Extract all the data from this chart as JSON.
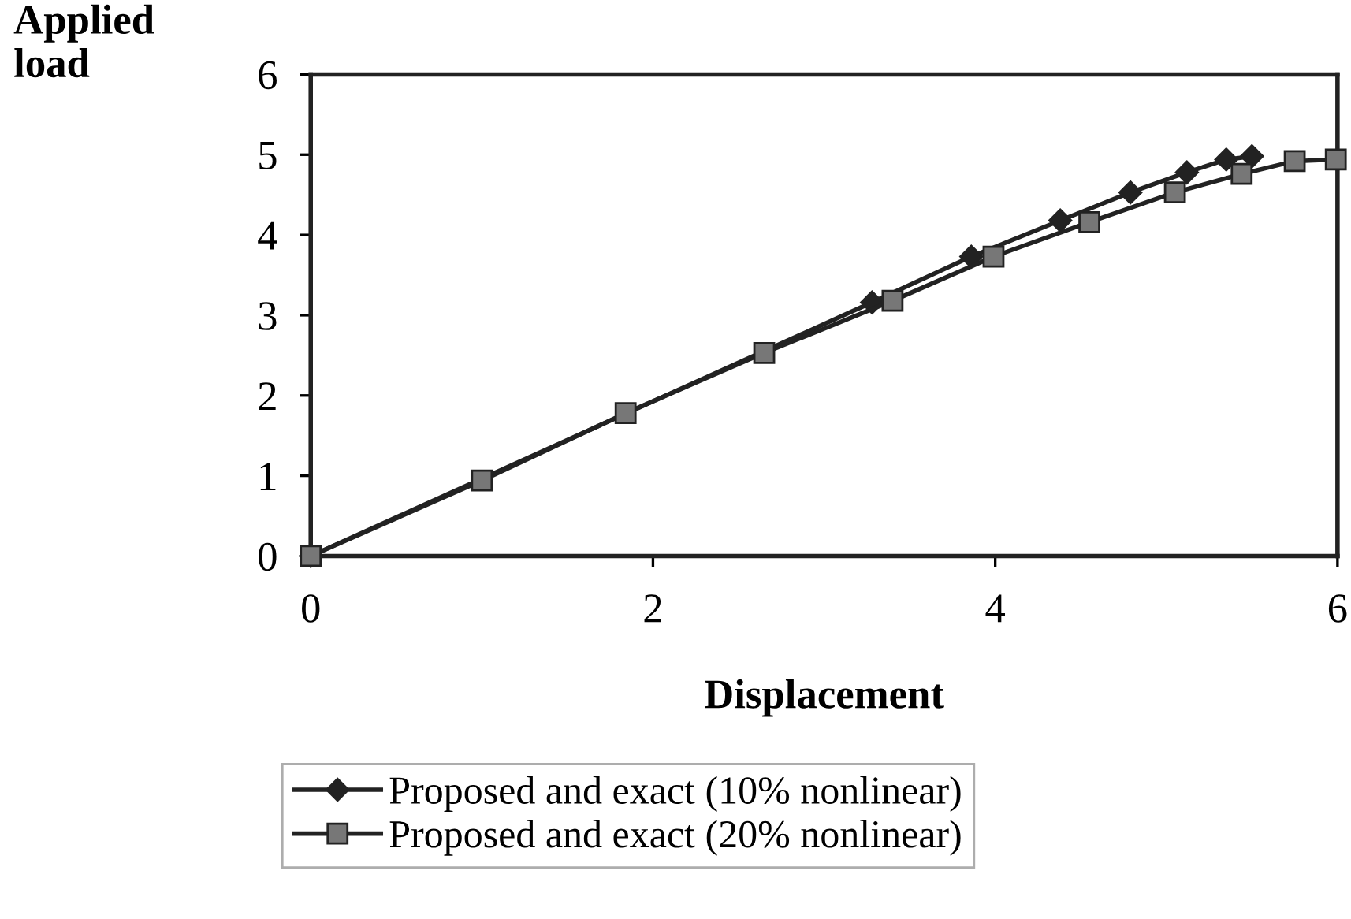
{
  "chart_data": {
    "type": "line",
    "xlabel": "Displacement",
    "ylabel": "Applied\nload",
    "xlim": [
      0,
      6
    ],
    "ylim": [
      0,
      6
    ],
    "xticks": [
      0,
      2,
      4,
      6
    ],
    "yticks": [
      0,
      1,
      2,
      3,
      4,
      5,
      6
    ],
    "grid": false,
    "legend": "bottom",
    "line_style": "solid",
    "series": [
      {
        "name": "Proposed and exact (10% nonlinear)",
        "color": "#222222",
        "marker": "diamond",
        "x": [
          0,
          0.97,
          1.82,
          2.63,
          3.28,
          3.86,
          4.38,
          4.79,
          5.12,
          5.35,
          5.5
        ],
        "values": [
          0,
          null,
          null,
          null,
          3.16,
          3.73,
          4.18,
          4.53,
          4.78,
          4.94,
          4.98
        ]
      },
      {
        "name": "Proposed and exact (20% nonlinear)",
        "color": "#777777",
        "marker": "square",
        "x": [
          0,
          1.0,
          1.84,
          2.65,
          3.4,
          3.99,
          4.55,
          5.05,
          5.44,
          5.75,
          5.99
        ],
        "values": [
          0,
          0.94,
          1.78,
          2.53,
          3.18,
          3.73,
          4.16,
          4.53,
          4.76,
          4.92,
          4.94
        ]
      }
    ]
  }
}
